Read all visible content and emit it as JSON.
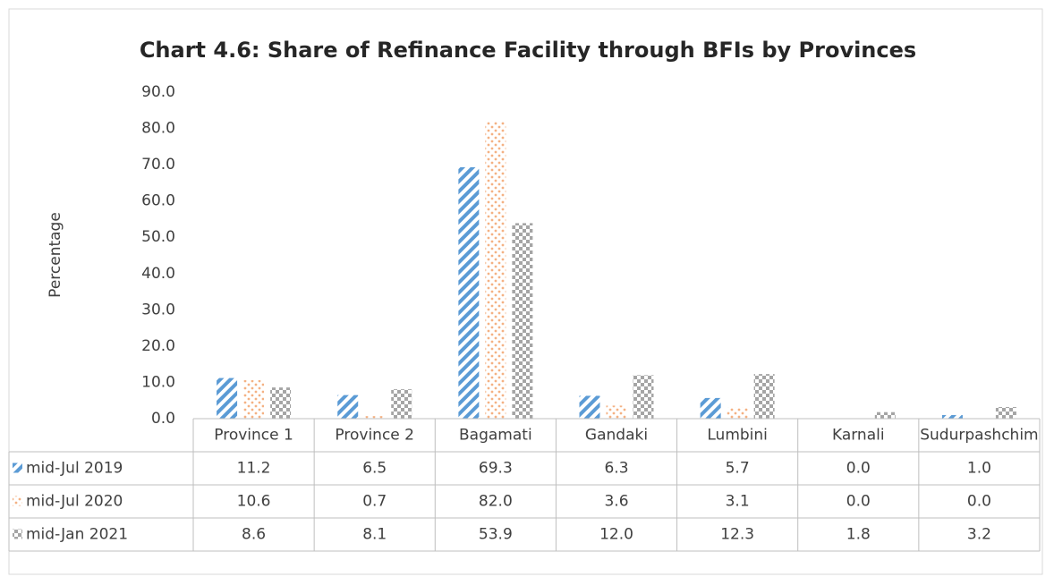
{
  "chart_data": {
    "type": "bar",
    "title": "Chart 4.6: Share of Refinance Facility through BFIs by Provinces",
    "y_label": "Percentage",
    "categories": [
      "Province 1",
      "Province 2",
      "Bagamati",
      "Gandaki",
      "Lumbini",
      "Karnali",
      "Sudurpashchim"
    ],
    "series": [
      {
        "name": "mid-Jul 2019",
        "color": "#5b9bd5",
        "pattern": "diagonal",
        "values": [
          11.2,
          6.5,
          69.3,
          6.3,
          5.7,
          0.0,
          1.0
        ],
        "value_labels": [
          "11.2",
          "6.5",
          "69.3",
          "6.3",
          "5.7",
          "0.0",
          "1.0"
        ]
      },
      {
        "name": "mid-Jul 2020",
        "color": "#f4b183",
        "pattern": "dots",
        "values": [
          10.6,
          0.7,
          82.0,
          3.6,
          3.1,
          0.0,
          0.0
        ],
        "value_labels": [
          "10.6",
          "0.7",
          "82.0",
          "3.6",
          "3.1",
          "0.0",
          "0.0"
        ]
      },
      {
        "name": "mid-Jan 2021",
        "color": "#a5a5a5",
        "pattern": "checker",
        "values": [
          8.6,
          8.1,
          53.9,
          12.0,
          12.3,
          1.8,
          3.2
        ],
        "value_labels": [
          "8.6",
          "8.1",
          "53.9",
          "12.0",
          "12.3",
          "1.8",
          "3.2"
        ]
      }
    ],
    "ylim": [
      0,
      90
    ],
    "yticks": [
      {
        "value": 0,
        "label": "0.0"
      },
      {
        "value": 10,
        "label": "10.0"
      },
      {
        "value": 20,
        "label": "20.0"
      },
      {
        "value": 30,
        "label": "30.0"
      },
      {
        "value": 40,
        "label": "40.0"
      },
      {
        "value": 50,
        "label": "50.0"
      },
      {
        "value": 60,
        "label": "60.0"
      },
      {
        "value": 70,
        "label": "70.0"
      },
      {
        "value": 80,
        "label": "80.0"
      },
      {
        "value": 90,
        "label": "90.0"
      }
    ],
    "grid": false,
    "legend": "data-table"
  }
}
